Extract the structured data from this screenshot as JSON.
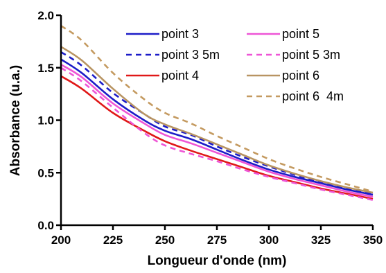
{
  "chart_data": {
    "type": "line",
    "xlabel": "Longueur d'onde (nm)",
    "ylabel": "Absorbance (u.a.)",
    "xlim": [
      200,
      350
    ],
    "ylim": [
      0.0,
      2.0
    ],
    "x_ticks": [
      200,
      225,
      250,
      275,
      300,
      325,
      350
    ],
    "x_tick_labels": [
      "200",
      "225",
      "250",
      "275",
      "300",
      "325",
      "350"
    ],
    "y_ticks": [
      0.0,
      0.5,
      1.0,
      1.5,
      2.0
    ],
    "y_tick_labels": [
      "0.0",
      "0.5",
      "1.0",
      "1.5",
      "2.0"
    ],
    "grid": false,
    "legend_position": "top-right",
    "x": [
      200,
      210,
      225,
      240,
      250,
      262.5,
      275,
      287.5,
      300,
      312.5,
      325,
      337.5,
      350
    ],
    "series": [
      {
        "name": "point 3",
        "color": "#1c1cc8",
        "dash": "solid",
        "values": [
          1.58,
          1.45,
          1.2,
          1.0,
          0.9,
          0.82,
          0.72,
          0.62,
          0.53,
          0.46,
          0.4,
          0.34,
          0.29
        ]
      },
      {
        "name": "point 3 5m",
        "color": "#1c1cc8",
        "dash": "dashed",
        "values": [
          1.65,
          1.52,
          1.26,
          1.06,
          0.94,
          0.86,
          0.75,
          0.65,
          0.56,
          0.48,
          0.41,
          0.35,
          0.3
        ]
      },
      {
        "name": "point 4",
        "color": "#e01818",
        "dash": "solid",
        "values": [
          1.42,
          1.3,
          1.07,
          0.9,
          0.8,
          0.71,
          0.63,
          0.55,
          0.47,
          0.41,
          0.35,
          0.3,
          0.25
        ]
      },
      {
        "name": "point 5",
        "color": "#ee55d6",
        "dash": "solid",
        "values": [
          1.53,
          1.41,
          1.16,
          0.97,
          0.86,
          0.78,
          0.69,
          0.6,
          0.51,
          0.44,
          0.38,
          0.32,
          0.27
        ]
      },
      {
        "name": "point 5 3m",
        "color": "#ee55d6",
        "dash": "dashed",
        "values": [
          1.5,
          1.37,
          1.12,
          0.88,
          0.76,
          0.68,
          0.61,
          0.53,
          0.46,
          0.4,
          0.34,
          0.29,
          0.24
        ]
      },
      {
        "name": "point 6",
        "color": "#b89462",
        "dash": "solid",
        "values": [
          1.7,
          1.57,
          1.3,
          1.06,
          0.96,
          0.87,
          0.77,
          0.67,
          0.57,
          0.49,
          0.42,
          0.36,
          0.31
        ]
      },
      {
        "name": "point 6  4m",
        "color": "#c49a60",
        "dash": "dashed",
        "values": [
          1.9,
          1.76,
          1.45,
          1.2,
          1.07,
          0.97,
          0.85,
          0.74,
          0.63,
          0.54,
          0.46,
          0.39,
          0.32
        ]
      }
    ]
  }
}
